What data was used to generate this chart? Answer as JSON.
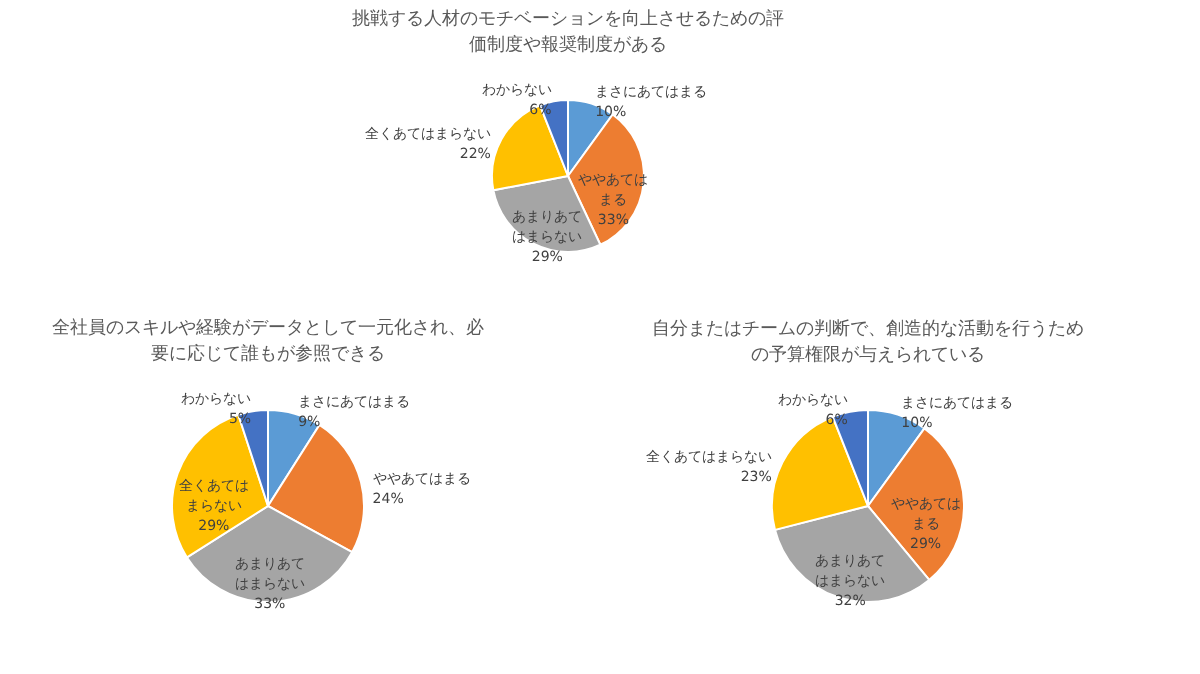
{
  "chart_data": [
    {
      "type": "pie",
      "title": "挑戦する人材のモチベーションを向上させるための評価制度や報奨制度がある",
      "categories": [
        "まさにあてはまる",
        "ややあてはまる",
        "あまりあてはまらない",
        "全くあてはまらない",
        "わからない"
      ],
      "values": [
        10,
        33,
        29,
        22,
        6
      ],
      "value_labels": [
        "10%",
        "33%",
        "29%",
        "22%",
        "6%"
      ],
      "colors": [
        "#5b9bd5",
        "#ed7d31",
        "#a5a5a5",
        "#ffc000",
        "#4472c4"
      ]
    },
    {
      "type": "pie",
      "title": "全社員のスキルや経験がデータとして一元化され、必要に応じて誰もが参照できる",
      "categories": [
        "まさにあてはまる",
        "ややあてはまる",
        "あまりあてはまらない",
        "全くあてはまらない",
        "わからない"
      ],
      "values": [
        9,
        24,
        33,
        29,
        5
      ],
      "value_labels": [
        "9%",
        "24%",
        "33%",
        "29%",
        "5%"
      ],
      "colors": [
        "#5b9bd5",
        "#ed7d31",
        "#a5a5a5",
        "#ffc000",
        "#4472c4"
      ]
    },
    {
      "type": "pie",
      "title": "自分またはチームの判断で、創造的な活動を行うための予算権限が与えられている",
      "categories": [
        "まさにあてはまる",
        "ややあてはまる",
        "あまりあてはまらない",
        "全くあてはまらない",
        "わからない"
      ],
      "values": [
        10,
        29,
        32,
        23,
        6
      ],
      "value_labels": [
        "10%",
        "29%",
        "32%",
        "23%",
        "6%"
      ],
      "colors": [
        "#5b9bd5",
        "#ed7d31",
        "#a5a5a5",
        "#ffc000",
        "#4472c4"
      ]
    }
  ]
}
